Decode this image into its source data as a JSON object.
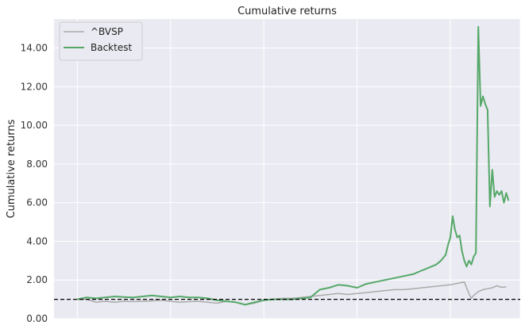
{
  "chart_data": {
    "type": "line",
    "title": "Cumulative returns",
    "xlabel": "",
    "ylabel": "Cumulative returns",
    "ylim": [
      0,
      15.5
    ],
    "xlim": [
      0,
      100
    ],
    "yticks": [
      0,
      2,
      4,
      6,
      8,
      10,
      12,
      14
    ],
    "ytick_labels": [
      "0.00",
      "2.00",
      "4.00",
      "6.00",
      "8.00",
      "10.00",
      "12.00",
      "14.00"
    ],
    "xgrid": [
      5,
      25,
      45,
      65,
      85,
      100
    ],
    "grid": true,
    "legend_position": "top-left",
    "baseline": 1.0,
    "series": [
      {
        "name": "^BVSP",
        "color": "#aaaaaa",
        "x": [
          5,
          7,
          9,
          11,
          13,
          15,
          17,
          19,
          21,
          23,
          25,
          27,
          29,
          31,
          33,
          35,
          37,
          39,
          41,
          43,
          45,
          47,
          49,
          51,
          53,
          55,
          57,
          59,
          61,
          63,
          65,
          67,
          69,
          71,
          73,
          75,
          77,
          79,
          81,
          83,
          85,
          87,
          88,
          89,
          89.5,
          90,
          91,
          92,
          93,
          94,
          95,
          96,
          97
        ],
        "y": [
          1.0,
          1.0,
          0.85,
          0.9,
          0.85,
          0.9,
          0.88,
          0.9,
          0.92,
          0.95,
          0.9,
          0.85,
          0.88,
          0.9,
          0.85,
          0.8,
          0.9,
          0.85,
          0.72,
          0.8,
          0.95,
          1.0,
          1.05,
          1.05,
          1.1,
          1.15,
          1.2,
          1.25,
          1.3,
          1.25,
          1.3,
          1.35,
          1.4,
          1.45,
          1.5,
          1.5,
          1.55,
          1.6,
          1.65,
          1.7,
          1.75,
          1.85,
          1.9,
          1.3,
          1.05,
          1.2,
          1.4,
          1.5,
          1.55,
          1.6,
          1.7,
          1.62,
          1.65
        ]
      },
      {
        "name": "Backtest",
        "color": "#55a868",
        "x": [
          5,
          7,
          9,
          11,
          13,
          15,
          17,
          19,
          21,
          23,
          25,
          27,
          29,
          31,
          33,
          35,
          37,
          39,
          41,
          43,
          45,
          47,
          49,
          51,
          53,
          55,
          57,
          59,
          61,
          63,
          65,
          67,
          69,
          71,
          73,
          75,
          77,
          79,
          81,
          82,
          83,
          84,
          84.5,
          85,
          85.5,
          86,
          86.5,
          87,
          87.5,
          88,
          88.5,
          89,
          89.5,
          90,
          90.5,
          91,
          91.5,
          92,
          92.5,
          93,
          93.5,
          94,
          94.5,
          95,
          95.5,
          96,
          96.5,
          97,
          97.5
        ],
        "y": [
          1.0,
          1.1,
          1.05,
          1.1,
          1.15,
          1.12,
          1.1,
          1.15,
          1.2,
          1.15,
          1.1,
          1.15,
          1.1,
          1.1,
          1.05,
          0.95,
          0.9,
          0.85,
          0.72,
          0.85,
          0.95,
          1.0,
          1.0,
          1.0,
          1.05,
          1.1,
          1.5,
          1.6,
          1.75,
          1.7,
          1.6,
          1.8,
          1.9,
          2.0,
          2.1,
          2.2,
          2.3,
          2.5,
          2.7,
          2.8,
          3.0,
          3.3,
          3.8,
          4.2,
          5.3,
          4.6,
          4.2,
          4.3,
          3.5,
          3.0,
          2.7,
          3.0,
          2.8,
          3.2,
          3.4,
          15.1,
          11.0,
          11.5,
          11.1,
          10.8,
          5.8,
          7.7,
          6.3,
          6.6,
          6.4,
          6.6,
          6.0,
          6.5,
          6.1
        ]
      }
    ]
  }
}
